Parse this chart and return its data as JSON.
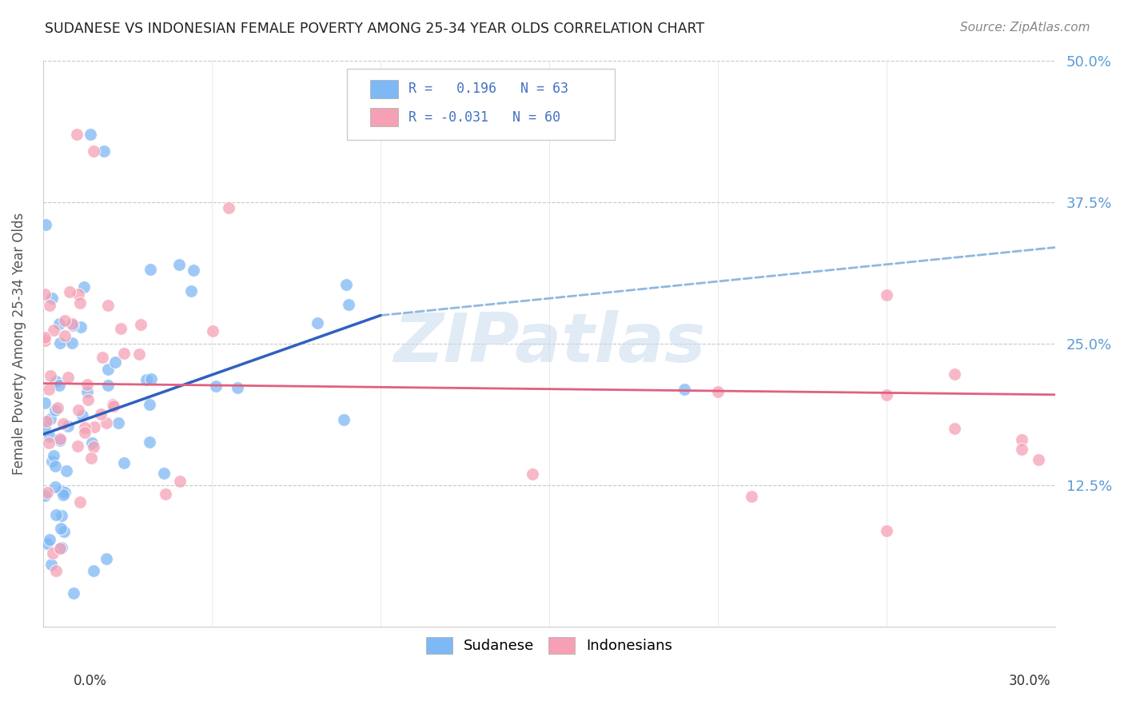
{
  "title": "SUDANESE VS INDONESIAN FEMALE POVERTY AMONG 25-34 YEAR OLDS CORRELATION CHART",
  "source": "Source: ZipAtlas.com",
  "ylabel": "Female Poverty Among 25-34 Year Olds",
  "xlim": [
    0.0,
    30.0
  ],
  "ylim": [
    0.0,
    50.0
  ],
  "sudanese_color": "#7EB8F5",
  "indonesian_color": "#F5A0B5",
  "trend_blue_solid": "#3060C0",
  "trend_pink": "#E06080",
  "trend_blue_dash": "#90B8E0",
  "r_sudanese": 0.196,
  "n_sudanese": 63,
  "r_indonesian": -0.031,
  "n_indonesian": 60,
  "blue_line_x0": 0.0,
  "blue_line_y0": 17.0,
  "blue_line_x1": 10.0,
  "blue_line_y1": 27.5,
  "blue_dash_x0": 10.0,
  "blue_dash_y0": 27.5,
  "blue_dash_x1": 30.0,
  "blue_dash_y1": 33.5,
  "pink_line_x0": 0.0,
  "pink_line_y0": 21.5,
  "pink_line_x1": 30.0,
  "pink_line_y1": 20.5,
  "watermark_text": "ZIPatlas",
  "legend_r1": "R =  0.196   N = 63",
  "legend_r2": "R = -0.031   N = 60"
}
